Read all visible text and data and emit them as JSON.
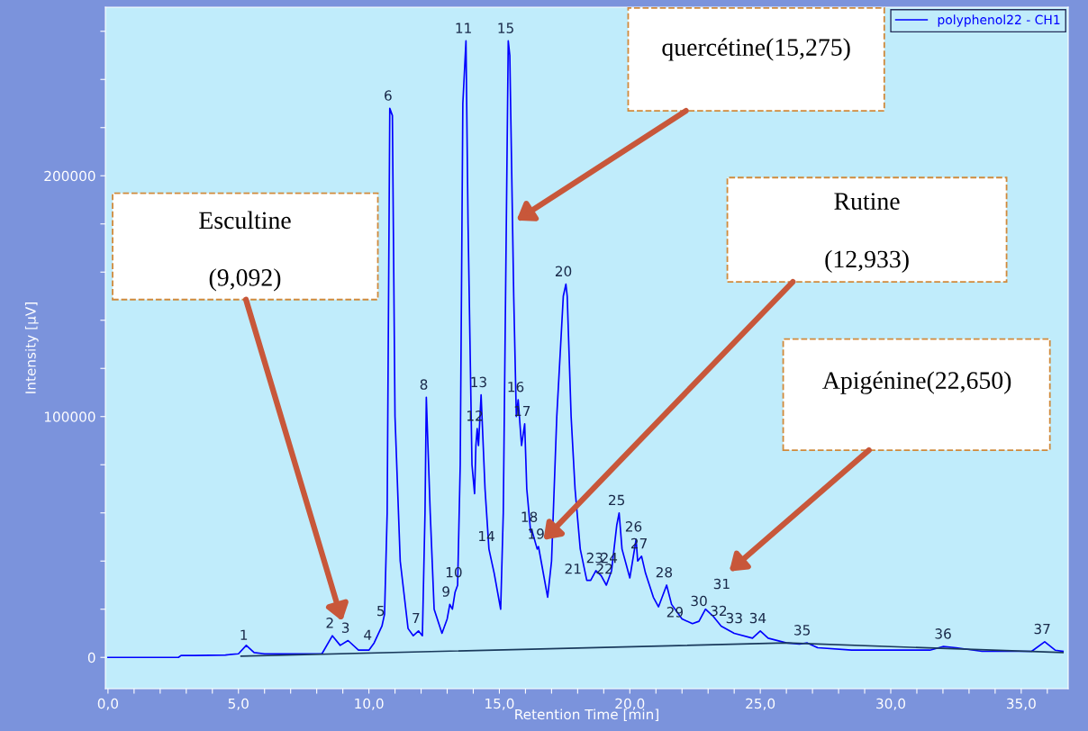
{
  "chart_data": {
    "type": "line",
    "xlabel": "Retention Time [min]",
    "ylabel": "Intensity [µV]",
    "xlim": [
      -0.1,
      36.8
    ],
    "ylim": [
      -13000,
      270000
    ],
    "xticks": [
      {
        "value": 0,
        "label": "0,0"
      },
      {
        "value": 1,
        "label": null
      },
      {
        "value": 2,
        "label": null
      },
      {
        "value": 3,
        "label": null
      },
      {
        "value": 4,
        "label": null
      },
      {
        "value": 5,
        "label": "5,0"
      },
      {
        "value": 6,
        "label": null
      },
      {
        "value": 7,
        "label": null
      },
      {
        "value": 8,
        "label": null
      },
      {
        "value": 9,
        "label": null
      },
      {
        "value": 10,
        "label": "10,0"
      },
      {
        "value": 11,
        "label": null
      },
      {
        "value": 12,
        "label": null
      },
      {
        "value": 13,
        "label": null
      },
      {
        "value": 14,
        "label": null
      },
      {
        "value": 15,
        "label": "15,0"
      },
      {
        "value": 16,
        "label": null
      },
      {
        "value": 17,
        "label": null
      },
      {
        "value": 18,
        "label": null
      },
      {
        "value": 19,
        "label": null
      },
      {
        "value": 20,
        "label": "20,0"
      },
      {
        "value": 21,
        "label": null
      },
      {
        "value": 22,
        "label": null
      },
      {
        "value": 23,
        "label": null
      },
      {
        "value": 24,
        "label": null
      },
      {
        "value": 25,
        "label": "25,0"
      },
      {
        "value": 26,
        "label": null
      },
      {
        "value": 27,
        "label": null
      },
      {
        "value": 28,
        "label": null
      },
      {
        "value": 29,
        "label": null
      },
      {
        "value": 30,
        "label": "30,0"
      },
      {
        "value": 31,
        "label": null
      },
      {
        "value": 32,
        "label": null
      },
      {
        "value": 33,
        "label": null
      },
      {
        "value": 34,
        "label": null
      },
      {
        "value": 35,
        "label": "35,0"
      },
      {
        "value": 36,
        "label": null
      }
    ],
    "yticks": [
      0,
      {
        "value": 20000,
        "label": null
      },
      {
        "value": 40000,
        "label": null
      },
      {
        "value": 60000,
        "label": null
      },
      {
        "value": 80000,
        "label": null
      },
      100000,
      {
        "value": 120000,
        "label": null
      },
      {
        "value": 140000,
        "label": null
      },
      {
        "value": 160000,
        "label": null
      },
      {
        "value": 180000,
        "label": null
      },
      200000,
      {
        "value": 220000,
        "label": null
      },
      {
        "value": 240000,
        "label": null
      },
      {
        "value": 260000,
        "label": null
      }
    ],
    "grid": false,
    "legend": "top right",
    "marker": "none",
    "line_style": "solid",
    "series": [
      {
        "name": "polyphenol22 - CH1",
        "color": "#0000ff",
        "x": [
          0,
          2.7,
          2.8,
          3.3,
          4.5,
          5.0,
          5.3,
          5.6,
          6.0,
          8.2,
          8.6,
          8.9,
          9.2,
          9.6,
          10.0,
          10.2,
          10.5,
          10.6,
          10.7,
          10.8,
          10.9,
          11.0,
          11.2,
          11.5,
          11.7,
          11.9,
          12.05,
          12.15,
          12.2,
          12.35,
          12.5,
          12.8,
          13.0,
          13.1,
          13.2,
          13.3,
          13.4,
          13.5,
          13.6,
          13.72,
          13.8,
          13.95,
          14.05,
          14.1,
          14.15,
          14.2,
          14.3,
          14.45,
          14.6,
          14.8,
          15.05,
          15.15,
          15.34,
          15.4,
          15.55,
          15.65,
          15.72,
          15.85,
          15.97,
          16.05,
          16.2,
          16.24,
          16.45,
          16.5,
          16.6,
          16.85,
          17.0,
          17.2,
          17.45,
          17.55,
          17.6,
          17.75,
          17.9,
          18.1,
          18.35,
          18.5,
          18.7,
          18.9,
          19.1,
          19.3,
          19.5,
          19.59,
          19.7,
          20.0,
          20.24,
          20.3,
          20.45,
          20.6,
          20.9,
          21.1,
          21.41,
          21.6,
          22.0,
          22.4,
          22.65,
          22.9,
          23.2,
          23.5,
          24.0,
          24.7,
          25.0,
          25.3,
          26.0,
          26.5,
          26.8,
          27.2,
          28.5,
          30.0,
          31.5,
          32.0,
          32.5,
          33.5,
          35.4,
          35.9,
          36.3,
          36.6
        ],
        "values": [
          0,
          0,
          800,
          800,
          1000,
          1500,
          5000,
          2000,
          1500,
          1500,
          9000,
          5000,
          7000,
          3000,
          3000,
          6000,
          13000,
          18000,
          60000,
          228000,
          225000,
          100000,
          40000,
          12000,
          9000,
          11000,
          9000,
          60000,
          108000,
          60000,
          20000,
          10000,
          16000,
          22000,
          20000,
          27000,
          30000,
          80000,
          230000,
          256000,
          180000,
          80000,
          68000,
          88000,
          95000,
          88000,
          109000,
          70000,
          45000,
          35000,
          20000,
          60000,
          256000,
          250000,
          150000,
          100000,
          107000,
          88000,
          97000,
          70000,
          52000,
          53000,
          45000,
          46000,
          40000,
          25000,
          40000,
          100000,
          150000,
          155000,
          150000,
          100000,
          70000,
          45000,
          32000,
          32000,
          36000,
          34000,
          30000,
          36000,
          55000,
          60000,
          45000,
          33000,
          49000,
          40000,
          42000,
          35000,
          25000,
          21000,
          30000,
          22000,
          16000,
          14000,
          15000,
          20000,
          17000,
          13000,
          10000,
          8000,
          11000,
          8000,
          6000,
          5500,
          6000,
          4000,
          3000,
          3000,
          3000,
          4500,
          4000,
          2500,
          2500,
          6500,
          3000,
          2500
        ]
      },
      {
        "color": "#1a3a5c",
        "x": [
          5.1,
          26.0,
          36.6
        ],
        "values": [
          500,
          6000,
          2000
        ]
      }
    ],
    "annotations": [
      "Escultine",
      "(9,092)",
      "quercétine(15,275)",
      "Rutine",
      "(12,933)",
      "Apigénine(22,650)",
      {
        "text": "1",
        "x": 5.3,
        "y": 4000
      },
      {
        "text": "2",
        "x": 8.6,
        "y": 9000
      },
      {
        "text": "3",
        "x": 9.2,
        "y": 7000
      },
      {
        "text": "4",
        "x": 10.05,
        "y": 4000
      },
      {
        "text": "5",
        "x": 10.55,
        "y": 14000
      },
      {
        "text": "6",
        "x": 10.83,
        "y": 228000
      },
      {
        "text": "7",
        "x": 11.9,
        "y": 11000
      },
      {
        "text": "8",
        "x": 12.2,
        "y": 108000
      },
      {
        "text": "9",
        "x": 13.05,
        "y": 22000
      },
      {
        "text": "10",
        "x": 13.35,
        "y": 30000
      },
      {
        "text": "11",
        "x": 13.72,
        "y": 256000
      },
      {
        "text": "12",
        "x": 14.15,
        "y": 95000
      },
      {
        "text": "13",
        "x": 14.3,
        "y": 109000
      },
      {
        "text": "14",
        "x": 14.6,
        "y": 45000
      },
      {
        "text": "15",
        "x": 15.34,
        "y": 256000
      },
      {
        "text": "16",
        "x": 15.72,
        "y": 107000
      },
      {
        "text": "17",
        "x": 15.97,
        "y": 97000
      },
      {
        "text": "18",
        "x": 16.24,
        "y": 53000
      },
      {
        "text": "19",
        "x": 16.5,
        "y": 46000
      },
      {
        "text": "20",
        "x": 17.55,
        "y": 155000
      },
      {
        "text": "21",
        "x": 18.35,
        "y": 32000
      },
      {
        "text": "22",
        "x": 18.5,
        "y": 32000
      },
      {
        "text": "23",
        "x": 18.75,
        "y": 36000
      },
      {
        "text": "24",
        "x": 19.3,
        "y": 36000
      },
      {
        "text": "25",
        "x": 19.59,
        "y": 60000
      },
      {
        "text": "26",
        "x": 20.24,
        "y": 49000
      },
      {
        "text": "27",
        "x": 20.45,
        "y": 42000
      },
      {
        "text": "28",
        "x": 21.41,
        "y": 30000
      },
      {
        "text": "29",
        "x": 22.4,
        "y": 14000
      },
      {
        "text": "30",
        "x": 22.65,
        "y": 15000
      },
      {
        "text": "31",
        "x": 22.9,
        "y": 20000
      },
      {
        "text": "32",
        "x": 23.5,
        "y": 14000
      },
      {
        "text": "33",
        "x": 24.1,
        "y": 11000
      },
      {
        "text": "34",
        "x": 25.0,
        "y": 11000
      },
      {
        "text": "35",
        "x": 26.7,
        "y": 6000
      },
      {
        "text": "36",
        "x": 32.1,
        "y": 4500
      },
      {
        "text": "37",
        "x": 35.9,
        "y": 6500
      }
    ]
  }
}
